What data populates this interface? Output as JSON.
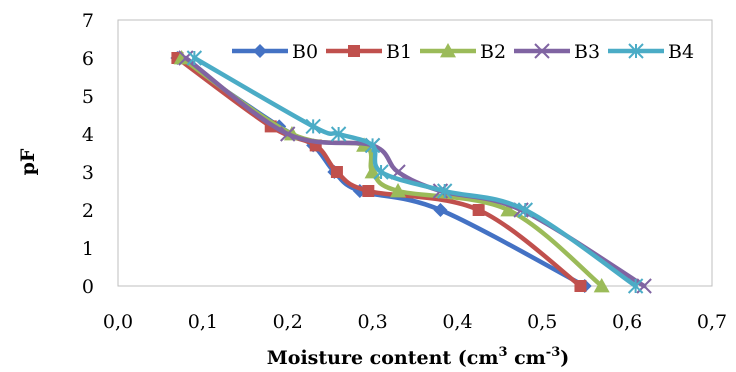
{
  "chart_data": {
    "type": "line",
    "title": "",
    "xlabel": "Moisture content (cm",
    "xlabel_sup1": "3",
    "xlabel_mid": " cm",
    "xlabel_sup2": "-3",
    "xlabel_end": ")",
    "ylabel": "pF",
    "xlim": [
      0,
      0.7
    ],
    "ylim": [
      0,
      7
    ],
    "xticks": [
      "0,0",
      "0,1",
      "0,2",
      "0,3",
      "0,4",
      "0,5",
      "0,6",
      "0,7"
    ],
    "yticks": [
      "0",
      "1",
      "2",
      "3",
      "4",
      "5",
      "6",
      "7"
    ],
    "grid": false,
    "legend": "top-right",
    "series": [
      {
        "name": "B0",
        "color": "#4472C4",
        "marker": "diamond",
        "x": [
          0.07,
          0.19,
          0.23,
          0.255,
          0.285,
          0.38,
          0.55
        ],
        "y": [
          6,
          4.2,
          3.7,
          3,
          2.5,
          2,
          0
        ]
      },
      {
        "name": "B1",
        "color": "#C0504D",
        "marker": "square",
        "x": [
          0.07,
          0.18,
          0.233,
          0.258,
          0.295,
          0.425,
          0.545
        ],
        "y": [
          6,
          4.2,
          3.7,
          3,
          2.5,
          2,
          0
        ]
      },
      {
        "name": "B2",
        "color": "#9BBB59",
        "marker": "triangle",
        "x": [
          0.075,
          0.205,
          0.29,
          0.3,
          0.33,
          0.46,
          0.57
        ],
        "y": [
          6,
          4,
          3.7,
          3,
          2.5,
          2,
          0
        ]
      },
      {
        "name": "B3",
        "color": "#8064A2",
        "marker": "x",
        "x": [
          0.08,
          0.2,
          0.3,
          0.33,
          0.38,
          0.475,
          0.62
        ],
        "y": [
          6,
          4,
          3.7,
          3,
          2.5,
          2,
          0
        ]
      },
      {
        "name": "B4",
        "color": "#4BACC6",
        "marker": "star",
        "x": [
          0.09,
          0.23,
          0.26,
          0.3,
          0.31,
          0.385,
          0.48,
          0.61
        ],
        "y": [
          6,
          4.2,
          4,
          3.7,
          3,
          2.5,
          2,
          0
        ]
      }
    ]
  }
}
